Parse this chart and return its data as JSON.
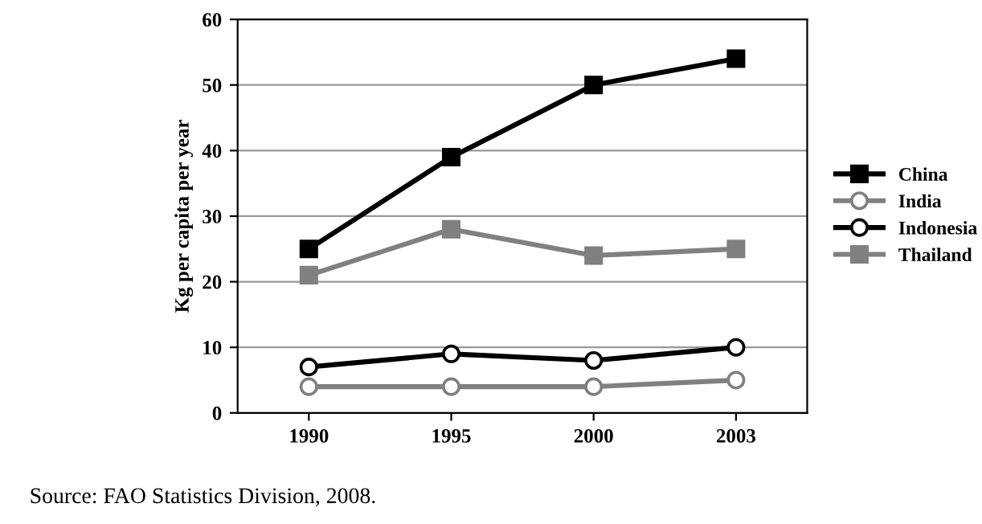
{
  "chart_data": {
    "type": "line",
    "ylabel": "Kg per capita per year",
    "categories": [
      "1990",
      "1995",
      "2000",
      "2003"
    ],
    "series": [
      {
        "name": "China",
        "color": "#000000",
        "marker": "square",
        "values": [
          25,
          39,
          50,
          54
        ]
      },
      {
        "name": "India",
        "color": "#808080",
        "marker": "circle",
        "values": [
          4,
          4,
          4,
          5
        ]
      },
      {
        "name": "Indonesia",
        "color": "#000000",
        "marker": "circle",
        "values": [
          7,
          9,
          8,
          10
        ]
      },
      {
        "name": "Thailand",
        "color": "#808080",
        "marker": "square",
        "values": [
          21,
          28,
          24,
          25
        ]
      }
    ],
    "ylim": [
      0,
      60
    ],
    "yticks": [
      0,
      10,
      20,
      30,
      40,
      50,
      60
    ],
    "grid": "y",
    "legend": "right",
    "line_style": "solid",
    "annotations": [
      "Source: FAO Statistics Division, 2008."
    ]
  }
}
